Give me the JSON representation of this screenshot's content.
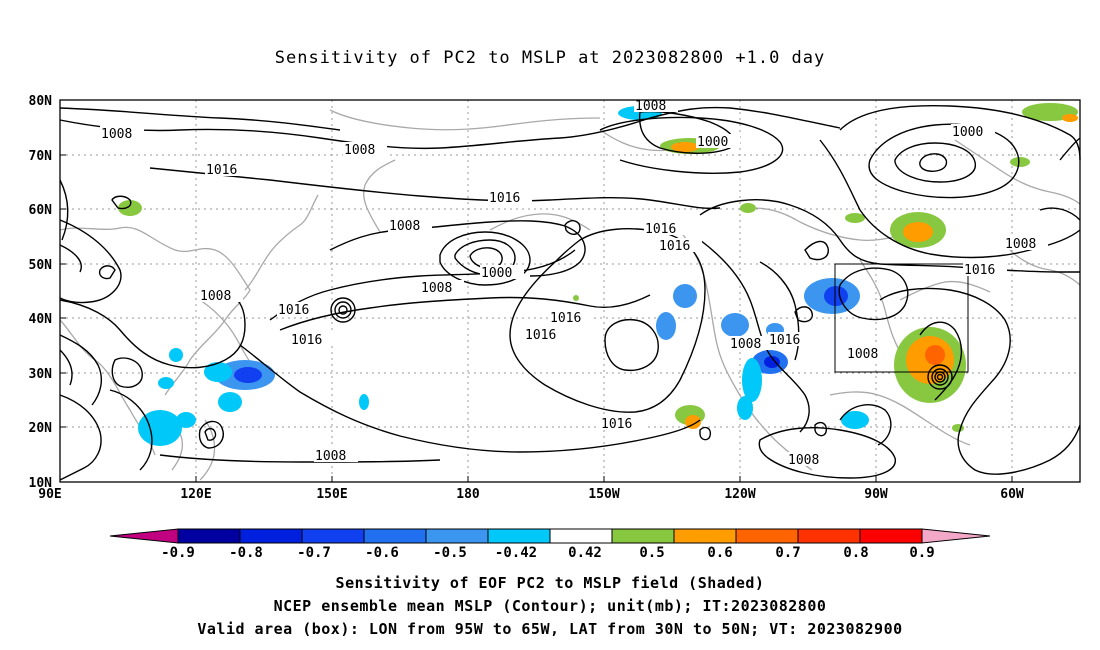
{
  "title": "Sensitivity of PC2 to MSLP at 2023082800 +1.0 day",
  "lat_labels": [
    "80N",
    "70N",
    "60N",
    "50N",
    "40N",
    "30N",
    "20N",
    "10N"
  ],
  "lon_labels": [
    "90E",
    "120E",
    "150E",
    "180",
    "150W",
    "120W",
    "90W",
    "60W"
  ],
  "contour_labels": {
    "c1008": "1008",
    "c1016": "1016",
    "c1000": "1000",
    "c1008b": "1008"
  },
  "colorbar": {
    "labels": [
      "-0.9",
      "-0.8",
      "-0.7",
      "-0.6",
      "-0.5",
      "-0.42",
      "0.42",
      "0.5",
      "0.6",
      "0.7",
      "0.8",
      "0.9"
    ],
    "colors": [
      "#c00080",
      "#0000a0",
      "#0020e0",
      "#1040f0",
      "#2070f0",
      "#3c96f0",
      "#00c8f8",
      "#ffffff",
      "#88c840",
      "#ff9c00",
      "#ff6400",
      "#ff3200",
      "#ff0000",
      "#f4a8c8"
    ]
  },
  "valid_box": {
    "lon_from": "95W",
    "lon_to": "65W",
    "lat_from": "30N",
    "lat_to": "50N"
  },
  "captions": {
    "line1": "Sensitivity of EOF PC2 to MSLP field (Shaded)",
    "line2": "NCEP ensemble mean MSLP (Contour); unit(mb); IT:2023082800",
    "line3": "Valid area (box): LON from 95W to 65W, LAT from 30N to 50N; VT: 2023082900"
  }
}
